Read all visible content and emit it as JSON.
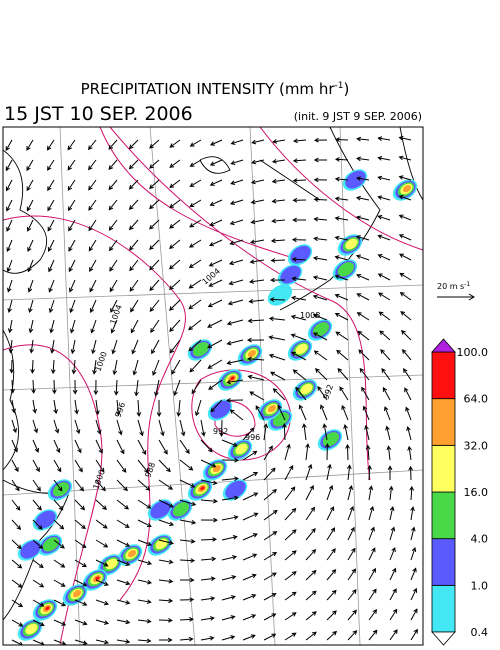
{
  "header": {
    "title": "PRECIPITATION INTENSITY (mm hr",
    "title_exponent": "-1",
    "title_close": ")",
    "valid_time": "15 JST 10 SEP. 2006",
    "init_time": "(init. 9 JST 9 SEP. 2006)"
  },
  "wind_reference": {
    "label": "20 m s",
    "exponent": "-1"
  },
  "isobar_labels": [
    "1004",
    "1000",
    "996",
    "992",
    "988",
    "1000",
    "1008",
    "1004",
    "996",
    "992"
  ],
  "colorbar": {
    "colors": [
      "#44e8f4",
      "#5a5aff",
      "#48d848",
      "#ffff60",
      "#ffa030",
      "#ff1010",
      "#b020e0"
    ],
    "levels": [
      {
        "value": 0.4,
        "label": "0.4"
      },
      {
        "value": 1,
        "label": "1.0"
      },
      {
        "value": 4,
        "label": "4.0"
      },
      {
        "value": 16,
        "label": "16.0"
      },
      {
        "value": 32,
        "label": "32.0"
      },
      {
        "value": 64,
        "label": "64.0"
      },
      {
        "value": 100,
        "label": "100.0"
      }
    ]
  }
}
